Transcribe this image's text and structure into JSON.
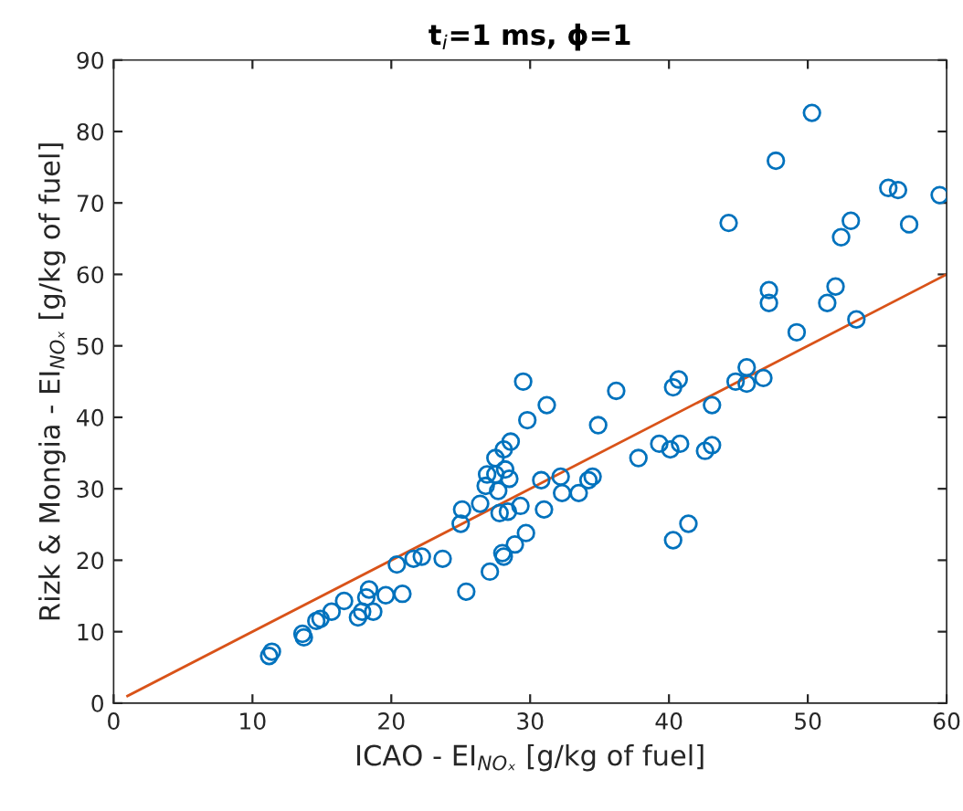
{
  "chart_data": {
    "type": "scatter",
    "title": "t$_{i}$=1 ms, ϕ=1",
    "xlabel": "ICAO - EI$_{NOₓ}$ [g/kg of fuel]",
    "ylabel": "Rizk & Mongia - EI$_{NOₓ}$ [g/kg of fuel]",
    "xlim": [
      0,
      60
    ],
    "ylim": [
      0,
      90
    ],
    "xticks": [
      0,
      10,
      20,
      30,
      40,
      50,
      60
    ],
    "yticks": [
      0,
      10,
      20,
      30,
      40,
      50,
      60,
      70,
      80,
      90
    ],
    "grid": false,
    "legend": false,
    "marker": "circle",
    "series": [
      {
        "color": "#0072bd",
        "x": [
          11.2,
          11.4,
          13.6,
          13.7,
          14.6,
          14.9,
          15.7,
          16.6,
          17.6,
          17.9,
          18.7,
          18.2,
          18.4,
          19.6,
          20.8,
          20.4,
          21.6,
          22.2,
          23.7,
          25.4,
          25.1,
          25.0,
          26.4,
          26.8,
          26.9,
          27.5,
          27.5,
          28.1,
          28.6,
          27.7,
          28.2,
          28.5,
          29.3,
          28.4,
          27.8,
          27.1,
          28.0,
          28.1,
          28.9,
          29.7,
          29.5,
          29.8,
          31.2,
          30.8,
          31.0,
          32.2,
          32.3,
          33.5,
          34.2,
          34.5,
          34.9,
          36.2,
          37.8,
          39.3,
          40.1,
          40.8,
          40.3,
          40.7,
          40.3,
          41.4,
          42.6,
          43.1,
          43.1,
          44.8,
          45.6,
          45.6,
          46.8,
          49.2,
          51.4,
          52.0,
          53.5,
          47.2,
          47.2,
          44.3,
          47.7,
          50.3,
          52.4,
          53.1,
          55.8,
          56.5,
          57.3,
          59.5
        ],
        "values": [
          6.6,
          7.2,
          9.7,
          9.2,
          11.5,
          11.8,
          12.8,
          14.3,
          12.0,
          12.8,
          12.8,
          14.8,
          15.9,
          15.1,
          15.3,
          19.4,
          20.2,
          20.5,
          20.2,
          15.6,
          27.1,
          25.1,
          27.9,
          30.4,
          32.0,
          32.0,
          34.3,
          35.5,
          36.6,
          29.7,
          32.7,
          31.4,
          27.6,
          26.8,
          26.6,
          18.4,
          21.0,
          20.5,
          22.2,
          23.8,
          45.0,
          39.6,
          41.7,
          31.2,
          27.1,
          31.7,
          29.4,
          29.4,
          31.2,
          31.7,
          38.9,
          43.7,
          34.3,
          36.3,
          35.5,
          36.3,
          44.2,
          45.3,
          22.8,
          25.1,
          35.3,
          36.1,
          41.7,
          45.0,
          44.7,
          47.0,
          45.5,
          51.9,
          56.0,
          58.3,
          53.7,
          57.8,
          56.0,
          67.2,
          75.9,
          82.6,
          65.2,
          67.5,
          72.1,
          71.8,
          67.0,
          71.1
        ]
      },
      {
        "type": "line",
        "color": "#d95319",
        "marker": "none",
        "x": [
          1,
          60
        ],
        "values": [
          1,
          60
        ]
      }
    ]
  }
}
